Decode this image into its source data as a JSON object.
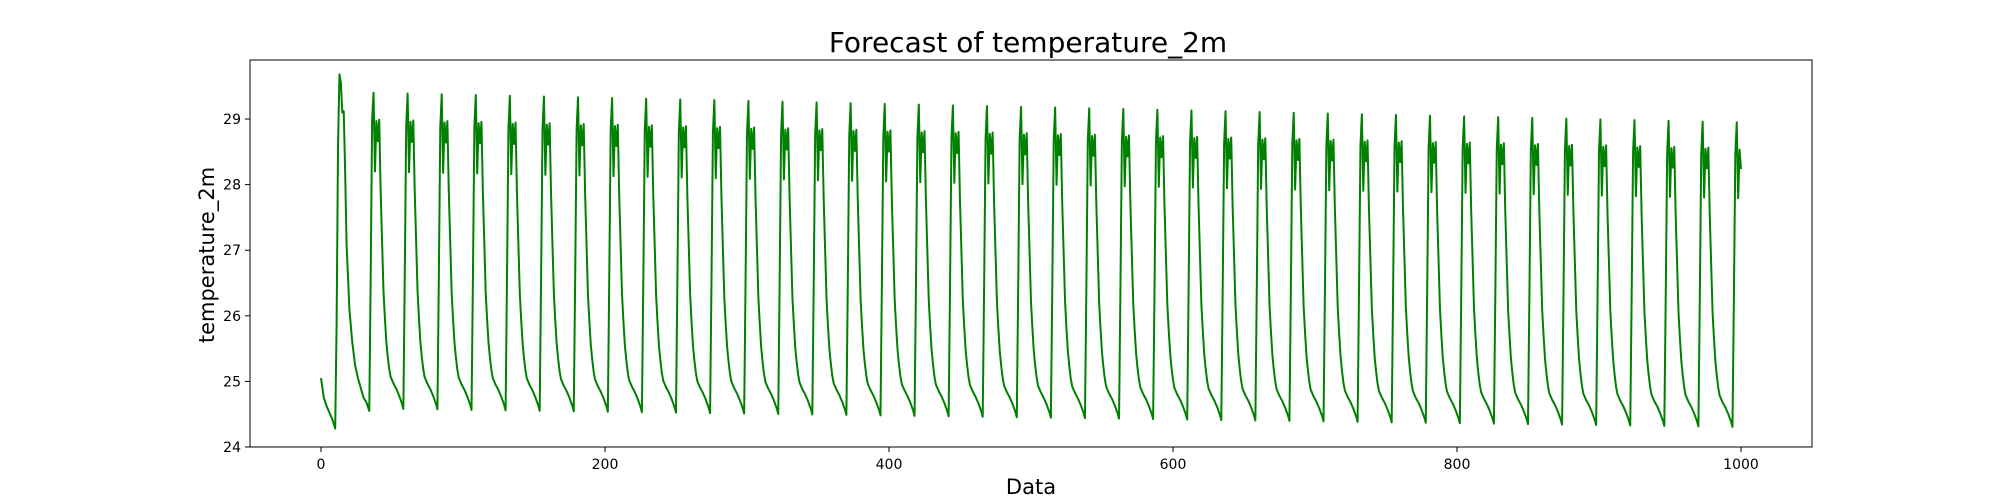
{
  "chart_data": {
    "type": "line",
    "title": "Forecast of temperature_2m",
    "xlabel": "Data",
    "ylabel": "temperature_2m",
    "xlim": [
      -50,
      1050
    ],
    "ylim": [
      24.0,
      29.9
    ],
    "x_ticks": [
      0,
      200,
      400,
      600,
      800,
      1000
    ],
    "x_tick_labels": [
      "0",
      "200",
      "400",
      "600",
      "800",
      "1000"
    ],
    "y_ticks": [
      24,
      25,
      26,
      27,
      28,
      29
    ],
    "y_tick_labels": [
      "24",
      "25",
      "26",
      "27",
      "28",
      "29"
    ],
    "grid": false,
    "legend": "none",
    "series": [
      {
        "color": "#008000",
        "x_start": 0,
        "x_end": 1000,
        "period": 24,
        "first_segment": [
          [
            0,
            25.05
          ],
          [
            2,
            24.75
          ],
          [
            4,
            24.62
          ],
          [
            6,
            24.52
          ],
          [
            8,
            24.42
          ],
          [
            10,
            24.28
          ],
          [
            11,
            25.9
          ],
          [
            12,
            28.6
          ],
          [
            13,
            29.68
          ],
          [
            14,
            29.55
          ],
          [
            15,
            29.1
          ],
          [
            16,
            29.12
          ],
          [
            17,
            28.2
          ],
          [
            18,
            27.1
          ],
          [
            19,
            26.6
          ],
          [
            20,
            26.1
          ],
          [
            22,
            25.6
          ],
          [
            24,
            25.25
          ],
          [
            26,
            25.05
          ],
          [
            28,
            24.9
          ],
          [
            30,
            24.75
          ],
          [
            32,
            24.68
          ],
          [
            34,
            24.55
          ],
          [
            35,
            26.6
          ],
          [
            36,
            29.0
          ]
        ],
        "cycle_pattern": [
          [
            0,
            0
          ],
          [
            1,
            -1.17
          ],
          [
            2,
            -0.42
          ],
          [
            3,
            -0.72
          ],
          [
            4,
            -0.4
          ],
          [
            5,
            -1.45
          ],
          [
            6,
            -2.2
          ],
          [
            7,
            -2.95
          ],
          [
            8,
            -3.35
          ],
          [
            9,
            -3.7
          ],
          [
            10,
            -3.92
          ],
          [
            11,
            -4.1
          ],
          [
            12,
            -4.22
          ],
          [
            14,
            -4.32
          ],
          [
            16,
            -4.4
          ],
          [
            18,
            -4.5
          ],
          [
            20,
            -4.62
          ],
          [
            21,
            -4.7
          ],
          [
            22,
            -2.7
          ],
          [
            23,
            -0.5
          ]
        ],
        "first_cycle_start": 37,
        "first_peak": 29.4,
        "last_peak": 28.95,
        "first_trough": 24.58,
        "last_trough": 24.3,
        "last_point": [
          1000,
          28.42
        ]
      }
    ]
  }
}
